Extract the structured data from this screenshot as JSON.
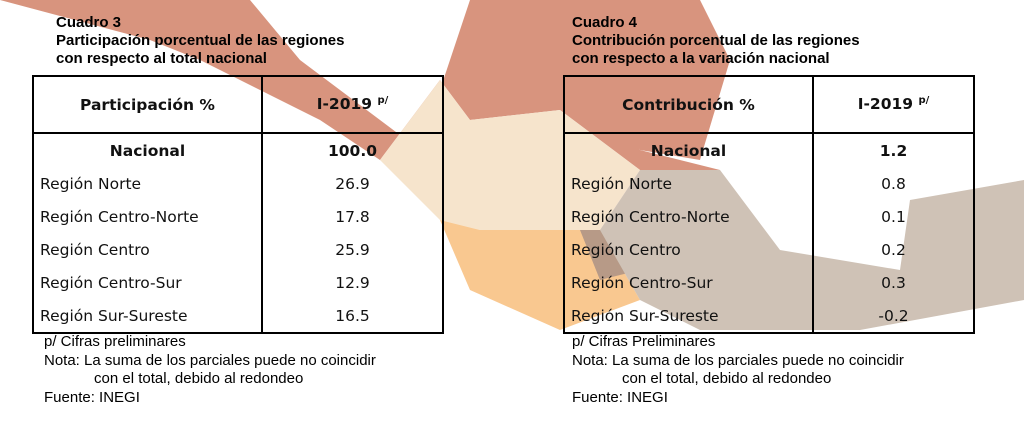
{
  "left": {
    "title": [
      "Cuadro 3",
      "Participación porcentual de las regiones",
      "con respecto al total nacional"
    ],
    "table": {
      "header": [
        "Participación %",
        "I-2019"
      ],
      "header_sup": "p/",
      "rows": [
        [
          "Nacional",
          "100.0"
        ],
        [
          "Región Norte",
          "26.9"
        ],
        [
          "Región Centro-Norte",
          "17.8"
        ],
        [
          "Región Centro",
          "25.9"
        ],
        [
          "Región Centro-Sur",
          "12.9"
        ],
        [
          "Región Sur-Sureste",
          "16.5"
        ]
      ]
    },
    "notes": [
      "p/ Cifras preliminares",
      "Nota: La suma de los parciales puede no coincidir",
      "con el total, debido al redondeo",
      "Fuente: INEGI"
    ]
  },
  "right": {
    "title": [
      "Cuadro 4",
      "Contribución porcentual de las regiones",
      "con respecto a la variación nacional"
    ],
    "table": {
      "header": [
        "Contribución %",
        "I-2019"
      ],
      "header_sup": "p/",
      "rows": [
        [
          "Nacional",
          "1.2"
        ],
        [
          "Región Norte",
          "0.8"
        ],
        [
          "Región Centro-Norte",
          "0.1"
        ],
        [
          "Región Centro",
          "0.2"
        ],
        [
          "Región Centro-Sur",
          "0.3"
        ],
        [
          "Región Sur-Sureste",
          "-0.2"
        ]
      ]
    },
    "notes": [
      "p/ Cifras Preliminares",
      "Nota: La suma de los parciales puede no coincidir",
      "con el total, debido al redondeo",
      "Fuente: INEGI"
    ]
  }
}
